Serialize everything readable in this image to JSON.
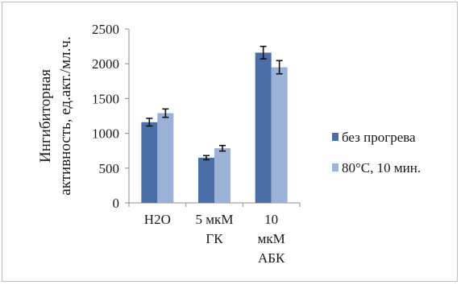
{
  "chart_data": {
    "type": "bar",
    "title": "",
    "xlabel": "",
    "ylabel": "Ингибиторная активность, ед.акт./мл.ч.",
    "ylim": [
      0,
      2500
    ],
    "yticks": [
      0,
      500,
      1000,
      1500,
      2000,
      2500
    ],
    "categories": [
      [
        "H2O"
      ],
      [
        "5 мкМ",
        "ГК"
      ],
      [
        "10",
        "мкМ",
        "АБК"
      ]
    ],
    "series": [
      {
        "name": "без прогрева",
        "color": "#4a6fa8",
        "values": [
          1160,
          650,
          2160
        ],
        "errors": [
          55,
          30,
          90
        ]
      },
      {
        "name": "80°C, 10 мин.",
        "color": "#9bb1d8",
        "values": [
          1290,
          785,
          1950
        ],
        "errors": [
          60,
          40,
          95
        ]
      }
    ],
    "grid": false,
    "legend_position": "right"
  }
}
